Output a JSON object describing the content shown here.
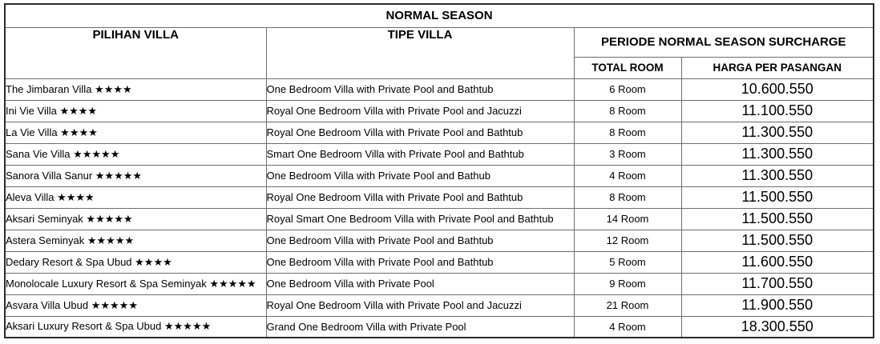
{
  "table": {
    "title": "NORMAL SEASON",
    "columns": {
      "villa": "PILIHAN VILLA",
      "type": "TIPE VILLA",
      "surcharge_group": "PERIODE NORMAL SEASON SURCHARGE",
      "total_room": "TOTAL ROOM",
      "price": "HARGA PER PASANGAN"
    },
    "colors": {
      "text": "#000000",
      "inner_border": "#6e6e6e",
      "outer_border": "#2b2b2b",
      "background": "#ffffff"
    },
    "rows": [
      {
        "villa": "The Jimbaran Villa ★★★★",
        "type": "One Bedroom Villa with Private Pool and Bathtub",
        "total_room": "6 Room",
        "price": "10.600.550"
      },
      {
        "villa": "Ini Vie Villa ★★★★",
        "type": "Royal One Bedroom Villa with Private Pool and Jacuzzi",
        "total_room": "8 Room",
        "price": "11.100.550"
      },
      {
        "villa": "La Vie Villa ★★★★",
        "type": "Royal One Bedroom Villa with Private Pool and Bathtub",
        "total_room": "8 Room",
        "price": "11.300.550"
      },
      {
        "villa": "Sana Vie Villa ★★★★★",
        "type": "Smart One Bedroom Villa with Private Pool and Bathtub",
        "total_room": "3 Room",
        "price": "11.300.550"
      },
      {
        "villa": "Sanora Villa Sanur ★★★★★",
        "type": "One Bedroom Villa with Private Pool and Bathub",
        "total_room": "4 Room",
        "price": "11.300.550"
      },
      {
        "villa": "Aleva Villa ★★★★",
        "type": "Royal One Bedroom Villa with Private Pool and Bathtub",
        "total_room": "8 Room",
        "price": "11.500.550"
      },
      {
        "villa": "Aksari Seminyak ★★★★★",
        "type": "Royal Smart One Bedroom Villa with Private Pool and Bathtub",
        "total_room": "14 Room",
        "price": "11.500.550"
      },
      {
        "villa": "Astera Seminyak ★★★★★",
        "type": "One Bedroom Villa with Private Pool and Bathtub",
        "total_room": "12 Room",
        "price": "11.500.550"
      },
      {
        "villa": "Dedary Resort & Spa Ubud ★★★★",
        "type": "One Bedroom Villa with Private Pool and Bathtub",
        "total_room": "5 Room",
        "price": "11.600.550"
      },
      {
        "villa": "Monolocale Luxury Resort & Spa Seminyak ★★★★★",
        "type": "One Bedroom Villa with Private Pool",
        "total_room": "9 Room",
        "price": "11.700.550"
      },
      {
        "villa": "Asvara Villa Ubud ★★★★★",
        "type": "Royal One Bedroom Villa with Private Pool and Jacuzzi",
        "total_room": "21 Room",
        "price": "11.900.550"
      },
      {
        "villa": "Aksari Luxury Resort & Spa Ubud ★★★★★",
        "type": "Grand One Bedroom Villa with Private Pool",
        "total_room": "4 Room",
        "price": "18.300.550"
      }
    ]
  }
}
